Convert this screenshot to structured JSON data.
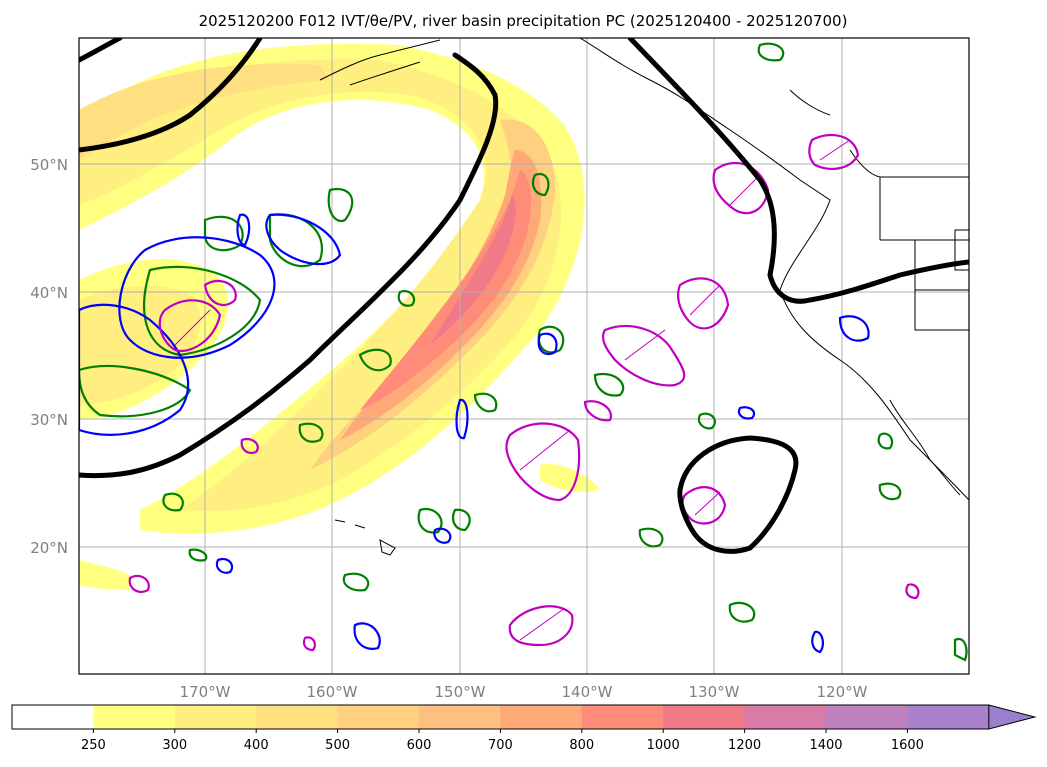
{
  "title": "2025120200 F012 IVT/θe/PV, river basin precipitation PC (2025120400 - 2025120700)",
  "map": {
    "lat_labels": [
      "50°N",
      "40°N",
      "30°N",
      "20°N"
    ],
    "lon_labels": [
      "170°W",
      "160°W",
      "150°W",
      "140°W",
      "130°W",
      "120°W"
    ],
    "lat_range": [
      10,
      60
    ],
    "lon_range": [
      -180,
      -110
    ],
    "grid": true
  },
  "colorbar": {
    "levels": [
      "250",
      "300",
      "400",
      "500",
      "600",
      "700",
      "800",
      "1000",
      "1200",
      "1400",
      "1600"
    ],
    "colors": [
      "#ffffff",
      "#ffff80",
      "#ffee80",
      "#ffe080",
      "#ffd080",
      "#ffbf80",
      "#ffa878",
      "#ff8c78",
      "#f07a88",
      "#d97aa8",
      "#c080c0",
      "#a880cc"
    ],
    "extend": "max"
  },
  "colors": {
    "theta_e_contour": "#008000",
    "pv_contour": "#0000ff",
    "precip_contour": "#c000c0",
    "height_contour": "#000000"
  }
}
